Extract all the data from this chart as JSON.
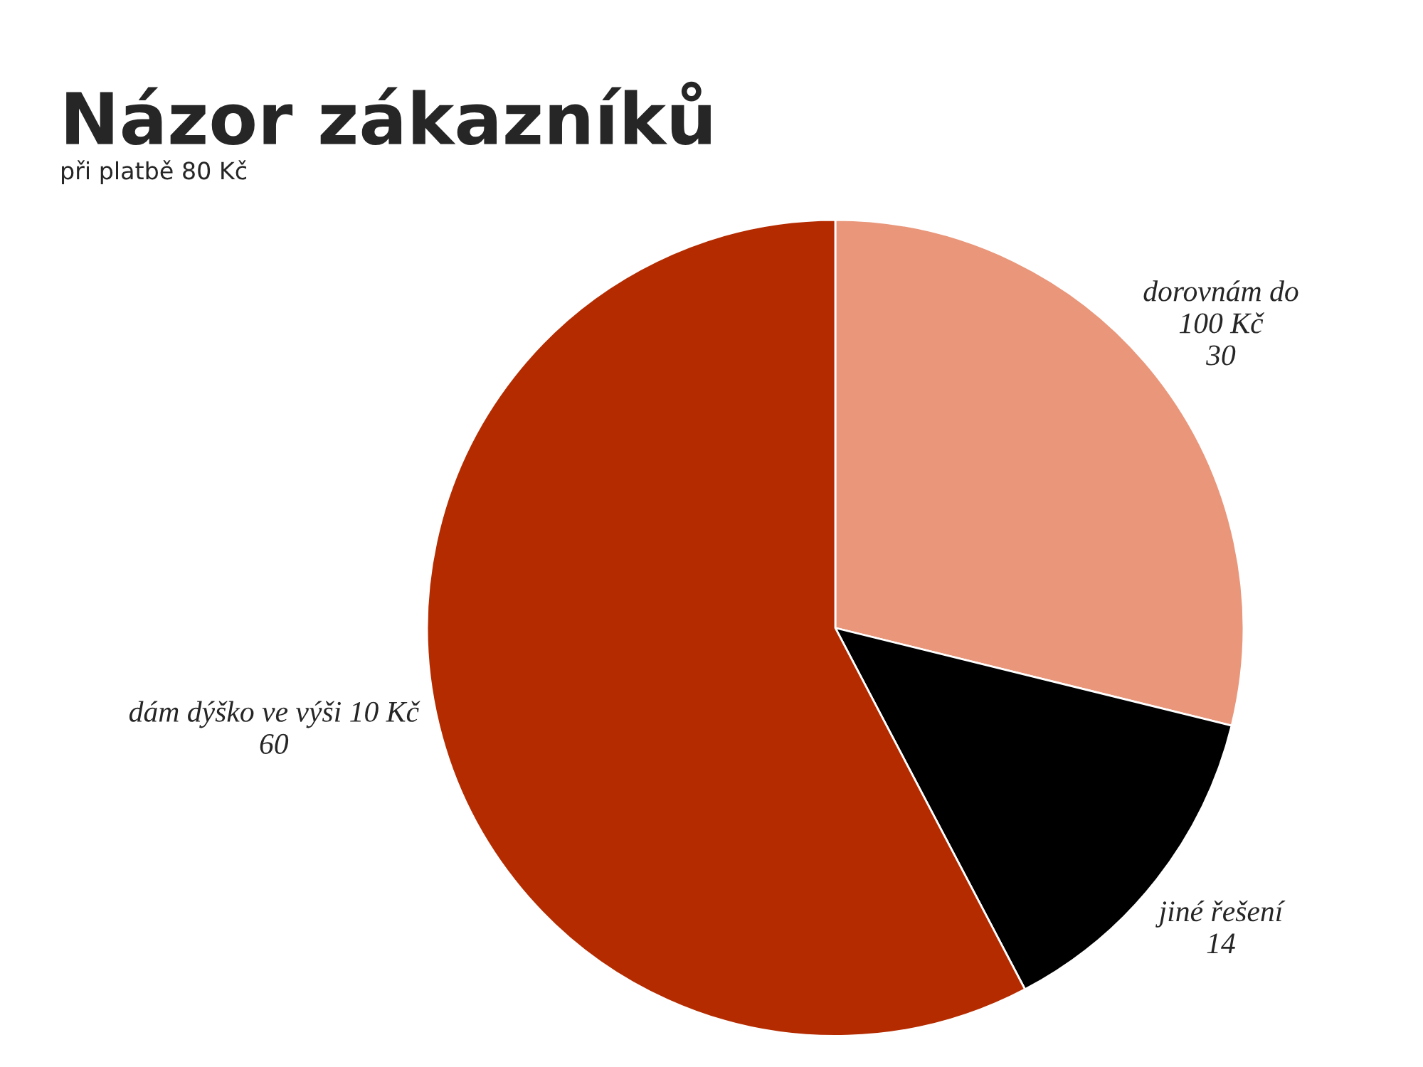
{
  "chart_data": {
    "type": "pie",
    "title": "Názor zákazníků",
    "subtitle": "při platbě 80 Kč",
    "categories": [
      "dorovnám do\n100 Kč",
      "jiné řešení",
      "dám dýško ve výši 10 Kč"
    ],
    "values": [
      30,
      14,
      60
    ],
    "colors": [
      "#e9967a",
      "#000000",
      "#b52b00"
    ],
    "data_labels": true
  }
}
